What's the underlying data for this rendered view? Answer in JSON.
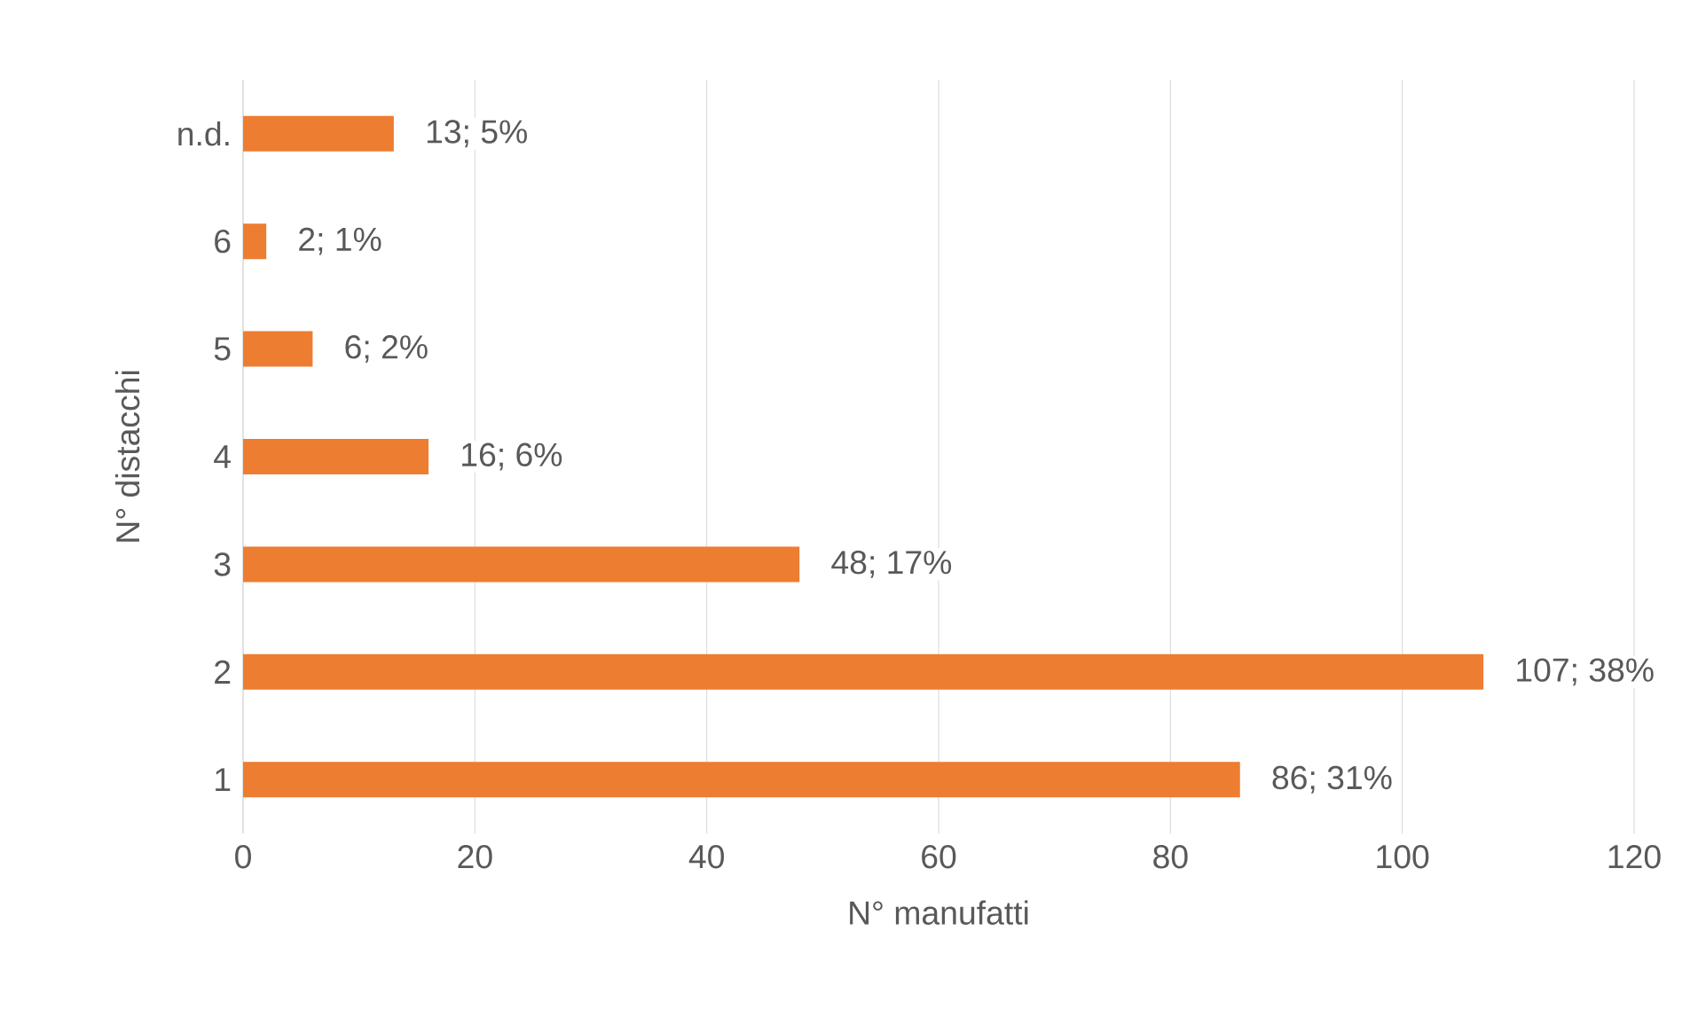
{
  "chart_data": {
    "type": "bar",
    "orientation": "horizontal",
    "xlabel": "N° manufatti",
    "ylabel": "N° distacchi",
    "categories": [
      "n.d.",
      "6",
      "5",
      "4",
      "3",
      "2",
      "1"
    ],
    "values": [
      13,
      2,
      6,
      16,
      48,
      107,
      86
    ],
    "value_labels": [
      "13; 5%",
      "2; 1%",
      "6; 2%",
      "16; 6%",
      "48; 17%",
      "107; 38%",
      "86; 31%"
    ],
    "color": "#ed7d31",
    "xlim": [
      0,
      120
    ],
    "xticks": [
      0,
      20,
      40,
      60,
      80,
      100,
      120
    ],
    "grid": "x"
  }
}
